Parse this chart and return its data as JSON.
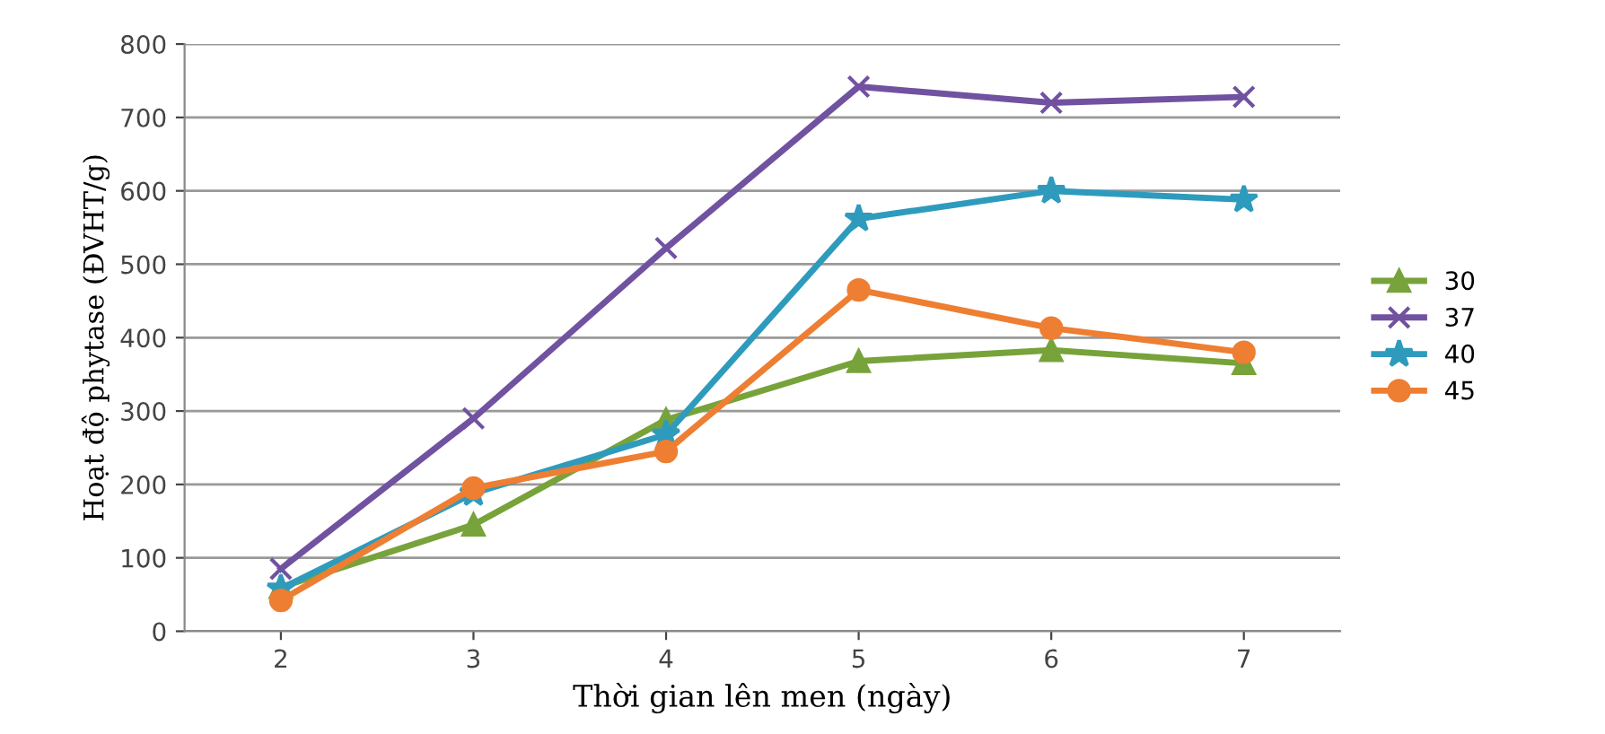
{
  "chart_data": {
    "type": "line",
    "xlabel": "Thời gian lên men (ngày)",
    "ylabel": "Hoạt độ phytase (ĐVHT/g)",
    "categories": [
      "2",
      "3",
      "4",
      "5",
      "6",
      "7"
    ],
    "series": [
      {
        "name": "30",
        "color": "#77a33a",
        "marker": "triangle",
        "values": [
          60,
          145,
          288,
          368,
          383,
          365
        ]
      },
      {
        "name": "37",
        "color": "#7152a0",
        "marker": "cross",
        "values": [
          85,
          290,
          522,
          742,
          720,
          728
        ]
      },
      {
        "name": "40",
        "color": "#2e9bbd",
        "marker": "star",
        "values": [
          58,
          188,
          268,
          562,
          600,
          588
        ]
      },
      {
        "name": "45",
        "color": "#ee7e32",
        "marker": "circle",
        "values": [
          42,
          195,
          245,
          465,
          413,
          380
        ]
      }
    ],
    "ylim": [
      0,
      800
    ],
    "yticks": [
      0,
      100,
      200,
      300,
      400,
      500,
      600,
      700,
      800
    ],
    "grid": "y",
    "legend": "right",
    "line_style": "solid"
  }
}
